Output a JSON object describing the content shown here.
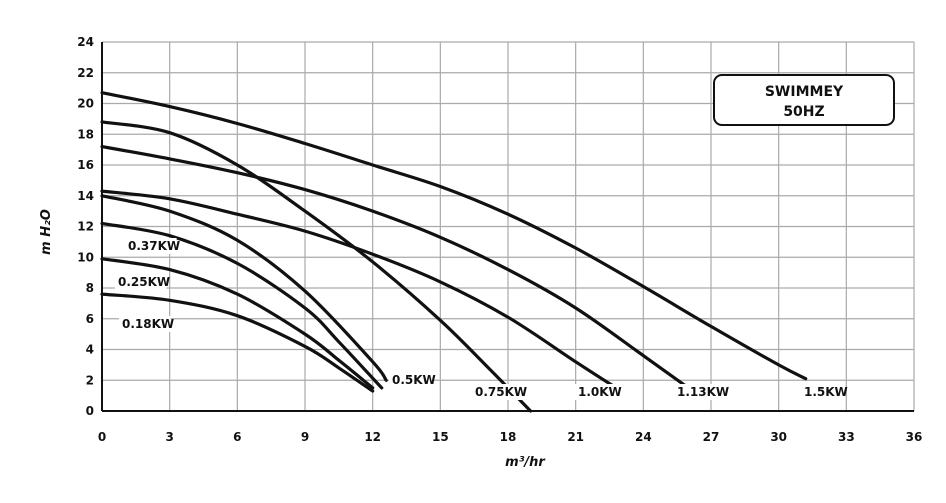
{
  "chart_data": {
    "type": "line",
    "title": "",
    "xlabel": "m³/hr",
    "ylabel": "m H₂O",
    "xlim": [
      0,
      36
    ],
    "ylim": [
      0,
      24
    ],
    "xticks": [
      0,
      3,
      6,
      9,
      12,
      15,
      18,
      21,
      24,
      27,
      30,
      33,
      36
    ],
    "yticks": [
      0,
      2,
      4,
      6,
      8,
      10,
      12,
      14,
      16,
      18,
      20,
      22,
      24
    ],
    "grid": true,
    "legend_box": [
      "SWIMMEY",
      "50HZ"
    ],
    "series": [
      {
        "name": "0.18KW",
        "x": [
          0,
          3,
          6,
          9,
          10.5,
          12
        ],
        "y": [
          7.6,
          7.2,
          6.2,
          4.2,
          2.8,
          1.3
        ]
      },
      {
        "name": "0.25KW",
        "x": [
          0,
          3,
          6,
          9,
          10.5,
          12
        ],
        "y": [
          9.9,
          9.2,
          7.6,
          5.0,
          3.3,
          1.5
        ]
      },
      {
        "name": "0.37KW",
        "x": [
          0,
          3,
          6,
          9,
          10.5,
          12.4
        ],
        "y": [
          12.2,
          11.4,
          9.6,
          6.7,
          4.5,
          1.5
        ]
      },
      {
        "name": "0.5KW",
        "x": [
          0,
          3,
          6,
          9,
          12,
          12.6
        ],
        "y": [
          14.0,
          13.0,
          11.1,
          7.8,
          3.2,
          2.0
        ]
      },
      {
        "name": "0.75KW",
        "x": [
          0,
          3,
          6,
          9,
          12,
          15,
          17.2,
          19.0
        ],
        "y": [
          18.8,
          18.1,
          16.0,
          13.0,
          9.7,
          5.9,
          2.7,
          0
        ]
      },
      {
        "name": "1.0KW",
        "x": [
          0,
          3,
          6,
          9,
          12,
          15,
          18,
          21,
          22.8
        ],
        "y": [
          14.3,
          13.8,
          12.8,
          11.7,
          10.2,
          8.4,
          6.1,
          3.2,
          1.5
        ]
      },
      {
        "name": "1.13KW",
        "x": [
          0,
          3,
          6,
          9,
          12,
          15,
          18,
          21,
          24,
          26.0
        ],
        "y": [
          17.2,
          16.4,
          15.5,
          14.4,
          13.0,
          11.3,
          9.2,
          6.7,
          3.6,
          1.5
        ]
      },
      {
        "name": "1.5KW",
        "x": [
          0,
          3,
          6,
          9,
          12,
          15,
          18,
          21,
          24,
          27,
          30,
          31.2
        ],
        "y": [
          20.7,
          19.8,
          18.7,
          17.4,
          16.0,
          14.6,
          12.8,
          10.6,
          8.1,
          5.5,
          3.0,
          2.1
        ]
      }
    ],
    "labels": [
      "0.37KW",
      "0.25KW",
      "0.18KW",
      "0.5KW",
      "0.75KW",
      "1.0KW",
      "1.13KW",
      "1.5KW"
    ]
  }
}
